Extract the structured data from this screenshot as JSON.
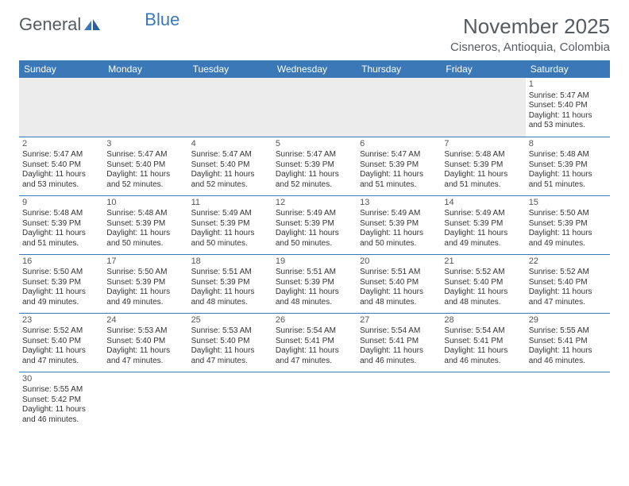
{
  "logo": {
    "text1": "General",
    "text2": "Blue"
  },
  "title": "November 2025",
  "location": "Cisneros, Antioquia, Colombia",
  "colors": {
    "header_bg": "#3a78b7",
    "header_text": "#ffffff",
    "border": "#3a78b7",
    "empty_bg": "#ececec",
    "page_bg": "#ffffff",
    "title_color": "#555b60",
    "body_text": "#333333"
  },
  "typography": {
    "title_fontsize": 26,
    "location_fontsize": 15,
    "dayheader_fontsize": 12,
    "cell_fontsize": 10
  },
  "day_headers": [
    "Sunday",
    "Monday",
    "Tuesday",
    "Wednesday",
    "Thursday",
    "Friday",
    "Saturday"
  ],
  "weeks": [
    [
      null,
      null,
      null,
      null,
      null,
      null,
      {
        "n": "1",
        "sunrise": "Sunrise: 5:47 AM",
        "sunset": "Sunset: 5:40 PM",
        "daylight": "Daylight: 11 hours and 53 minutes."
      }
    ],
    [
      {
        "n": "2",
        "sunrise": "Sunrise: 5:47 AM",
        "sunset": "Sunset: 5:40 PM",
        "daylight": "Daylight: 11 hours and 53 minutes."
      },
      {
        "n": "3",
        "sunrise": "Sunrise: 5:47 AM",
        "sunset": "Sunset: 5:40 PM",
        "daylight": "Daylight: 11 hours and 52 minutes."
      },
      {
        "n": "4",
        "sunrise": "Sunrise: 5:47 AM",
        "sunset": "Sunset: 5:40 PM",
        "daylight": "Daylight: 11 hours and 52 minutes."
      },
      {
        "n": "5",
        "sunrise": "Sunrise: 5:47 AM",
        "sunset": "Sunset: 5:39 PM",
        "daylight": "Daylight: 11 hours and 52 minutes."
      },
      {
        "n": "6",
        "sunrise": "Sunrise: 5:47 AM",
        "sunset": "Sunset: 5:39 PM",
        "daylight": "Daylight: 11 hours and 51 minutes."
      },
      {
        "n": "7",
        "sunrise": "Sunrise: 5:48 AM",
        "sunset": "Sunset: 5:39 PM",
        "daylight": "Daylight: 11 hours and 51 minutes."
      },
      {
        "n": "8",
        "sunrise": "Sunrise: 5:48 AM",
        "sunset": "Sunset: 5:39 PM",
        "daylight": "Daylight: 11 hours and 51 minutes."
      }
    ],
    [
      {
        "n": "9",
        "sunrise": "Sunrise: 5:48 AM",
        "sunset": "Sunset: 5:39 PM",
        "daylight": "Daylight: 11 hours and 51 minutes."
      },
      {
        "n": "10",
        "sunrise": "Sunrise: 5:48 AM",
        "sunset": "Sunset: 5:39 PM",
        "daylight": "Daylight: 11 hours and 50 minutes."
      },
      {
        "n": "11",
        "sunrise": "Sunrise: 5:49 AM",
        "sunset": "Sunset: 5:39 PM",
        "daylight": "Daylight: 11 hours and 50 minutes."
      },
      {
        "n": "12",
        "sunrise": "Sunrise: 5:49 AM",
        "sunset": "Sunset: 5:39 PM",
        "daylight": "Daylight: 11 hours and 50 minutes."
      },
      {
        "n": "13",
        "sunrise": "Sunrise: 5:49 AM",
        "sunset": "Sunset: 5:39 PM",
        "daylight": "Daylight: 11 hours and 50 minutes."
      },
      {
        "n": "14",
        "sunrise": "Sunrise: 5:49 AM",
        "sunset": "Sunset: 5:39 PM",
        "daylight": "Daylight: 11 hours and 49 minutes."
      },
      {
        "n": "15",
        "sunrise": "Sunrise: 5:50 AM",
        "sunset": "Sunset: 5:39 PM",
        "daylight": "Daylight: 11 hours and 49 minutes."
      }
    ],
    [
      {
        "n": "16",
        "sunrise": "Sunrise: 5:50 AM",
        "sunset": "Sunset: 5:39 PM",
        "daylight": "Daylight: 11 hours and 49 minutes."
      },
      {
        "n": "17",
        "sunrise": "Sunrise: 5:50 AM",
        "sunset": "Sunset: 5:39 PM",
        "daylight": "Daylight: 11 hours and 49 minutes."
      },
      {
        "n": "18",
        "sunrise": "Sunrise: 5:51 AM",
        "sunset": "Sunset: 5:39 PM",
        "daylight": "Daylight: 11 hours and 48 minutes."
      },
      {
        "n": "19",
        "sunrise": "Sunrise: 5:51 AM",
        "sunset": "Sunset: 5:39 PM",
        "daylight": "Daylight: 11 hours and 48 minutes."
      },
      {
        "n": "20",
        "sunrise": "Sunrise: 5:51 AM",
        "sunset": "Sunset: 5:40 PM",
        "daylight": "Daylight: 11 hours and 48 minutes."
      },
      {
        "n": "21",
        "sunrise": "Sunrise: 5:52 AM",
        "sunset": "Sunset: 5:40 PM",
        "daylight": "Daylight: 11 hours and 48 minutes."
      },
      {
        "n": "22",
        "sunrise": "Sunrise: 5:52 AM",
        "sunset": "Sunset: 5:40 PM",
        "daylight": "Daylight: 11 hours and 47 minutes."
      }
    ],
    [
      {
        "n": "23",
        "sunrise": "Sunrise: 5:52 AM",
        "sunset": "Sunset: 5:40 PM",
        "daylight": "Daylight: 11 hours and 47 minutes."
      },
      {
        "n": "24",
        "sunrise": "Sunrise: 5:53 AM",
        "sunset": "Sunset: 5:40 PM",
        "daylight": "Daylight: 11 hours and 47 minutes."
      },
      {
        "n": "25",
        "sunrise": "Sunrise: 5:53 AM",
        "sunset": "Sunset: 5:40 PM",
        "daylight": "Daylight: 11 hours and 47 minutes."
      },
      {
        "n": "26",
        "sunrise": "Sunrise: 5:54 AM",
        "sunset": "Sunset: 5:41 PM",
        "daylight": "Daylight: 11 hours and 47 minutes."
      },
      {
        "n": "27",
        "sunrise": "Sunrise: 5:54 AM",
        "sunset": "Sunset: 5:41 PM",
        "daylight": "Daylight: 11 hours and 46 minutes."
      },
      {
        "n": "28",
        "sunrise": "Sunrise: 5:54 AM",
        "sunset": "Sunset: 5:41 PM",
        "daylight": "Daylight: 11 hours and 46 minutes."
      },
      {
        "n": "29",
        "sunrise": "Sunrise: 5:55 AM",
        "sunset": "Sunset: 5:41 PM",
        "daylight": "Daylight: 11 hours and 46 minutes."
      }
    ],
    [
      {
        "n": "30",
        "sunrise": "Sunrise: 5:55 AM",
        "sunset": "Sunset: 5:42 PM",
        "daylight": "Daylight: 11 hours and 46 minutes."
      },
      null,
      null,
      null,
      null,
      null,
      null
    ]
  ]
}
